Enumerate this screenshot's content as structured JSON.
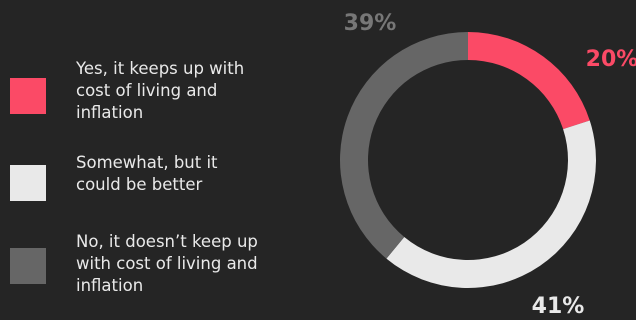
{
  "chart_data": {
    "type": "pie",
    "donut": true,
    "categories": [
      "Yes, it keeps up with cost of living and inflation",
      "Somewhat, but it could be better",
      "No, it doesn’t keep up with cost of living and inflation"
    ],
    "values": [
      20,
      41,
      39
    ],
    "labels": [
      "20%",
      "41%",
      "39%"
    ],
    "colors": [
      "#fb4a66",
      "#e9e9e9",
      "#666666"
    ],
    "label_colors": [
      "#fb4a66",
      "#e9e9e9",
      "#777777"
    ],
    "legend_position": "left"
  },
  "legend": [
    {
      "lines": [
        "Yes, it keeps up with",
        "cost of living and",
        "inflation"
      ],
      "color": "#fb4a66"
    },
    {
      "lines": [
        "Somewhat, but it",
        "could be better"
      ],
      "color": "#e9e9e9"
    },
    {
      "lines": [
        "No, it doesn’t keep up",
        "with cost of living and",
        "inflation"
      ],
      "color": "#666666"
    }
  ]
}
